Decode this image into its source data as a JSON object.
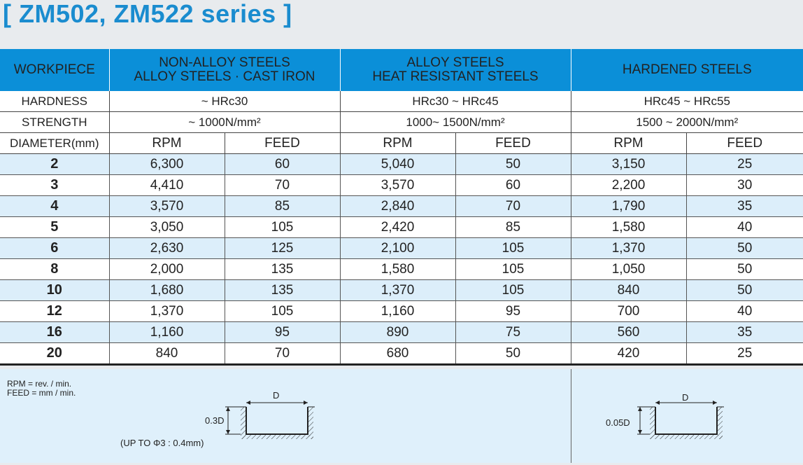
{
  "title": "[ ZM502, ZM522 series ]",
  "table": {
    "workpiece_label": "WORKPIECE",
    "groups": [
      {
        "line1": "NON-ALLOY STEELS",
        "line2": "ALLOY STEELS · CAST IRON",
        "hardness": "~ HRc30",
        "strength": "~ 1000N/mm²"
      },
      {
        "line1": "ALLOY STEELS",
        "line2": "HEAT RESISTANT STEELS",
        "hardness": "HRc30 ~ HRc45",
        "strength": "1000~ 1500N/mm²"
      },
      {
        "line1": "HARDENED STEELS",
        "line2": "",
        "hardness": "HRc45 ~ HRc55",
        "strength": "1500 ~ 2000N/mm²"
      }
    ],
    "hardness_label": "HARDNESS",
    "strength_label": "STRENGTH",
    "diameter_label": "DIAMETER(mm)",
    "rpm_label": "RPM",
    "feed_label": "FEED",
    "rows": [
      {
        "d": "2",
        "v": [
          "6,300",
          "60",
          "5,040",
          "50",
          "3,150",
          "25"
        ]
      },
      {
        "d": "3",
        "v": [
          "4,410",
          "70",
          "3,570",
          "60",
          "2,200",
          "30"
        ]
      },
      {
        "d": "4",
        "v": [
          "3,570",
          "85",
          "2,840",
          "70",
          "1,790",
          "35"
        ]
      },
      {
        "d": "5",
        "v": [
          "3,050",
          "105",
          "2,420",
          "85",
          "1,580",
          "40"
        ]
      },
      {
        "d": "6",
        "v": [
          "2,630",
          "125",
          "2,100",
          "105",
          "1,370",
          "50"
        ]
      },
      {
        "d": "8",
        "v": [
          "2,000",
          "135",
          "1,580",
          "105",
          "1,050",
          "50"
        ]
      },
      {
        "d": "10",
        "v": [
          "1,680",
          "135",
          "1,370",
          "105",
          "840",
          "50"
        ]
      },
      {
        "d": "12",
        "v": [
          "1,370",
          "105",
          "1,160",
          "95",
          "700",
          "40"
        ]
      },
      {
        "d": "16",
        "v": [
          "1,160",
          "95",
          "890",
          "75",
          "560",
          "35"
        ]
      },
      {
        "d": "20",
        "v": [
          "840",
          "70",
          "680",
          "50",
          "420",
          "25"
        ]
      }
    ]
  },
  "notes": {
    "rpm_note": "RPM = rev. / min.",
    "feed_note": "FEED = mm / min.",
    "left_diagram": {
      "width_label": "D",
      "depth_label": "0.3D",
      "caption": "(UP TO   Φ3 : 0.4mm)"
    },
    "right_diagram": {
      "width_label": "D",
      "depth_label": "0.05D"
    }
  }
}
